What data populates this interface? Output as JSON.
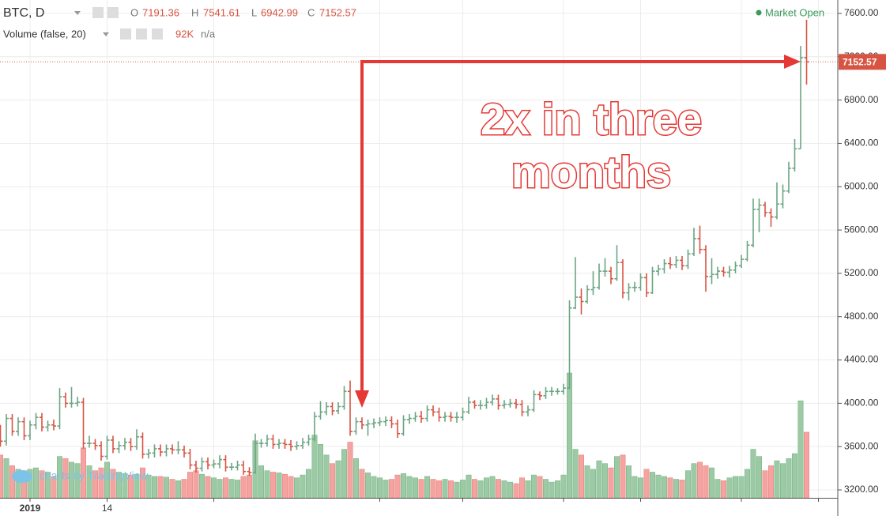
{
  "header": {
    "symbol": "BTC, D",
    "status": "Market Open"
  },
  "chart_data": {
    "type": "ohlc",
    "legend": {
      "open_label": "O",
      "high_label": "H",
      "low_label": "L",
      "close_label": "C"
    },
    "categories": [
      null,
      null,
      null,
      null,
      null,
      "2019",
      null,
      null,
      null,
      null,
      null,
      null,
      null,
      null,
      null,
      null,
      null,
      null,
      "14",
      null,
      null,
      null,
      null,
      null,
      null,
      null,
      null,
      null,
      null,
      null,
      null,
      null,
      null,
      null,
      null,
      null,
      null,
      null,
      null,
      null,
      null,
      null,
      null,
      null,
      null,
      null,
      null,
      null,
      null,
      null,
      null,
      null,
      null,
      null,
      null,
      null,
      null,
      null,
      null,
      null,
      null,
      null,
      null,
      null,
      null,
      null,
      null,
      null,
      null,
      null,
      null,
      null,
      null,
      null,
      null,
      null,
      null,
      null,
      null,
      null,
      null,
      null,
      null,
      null,
      null,
      null,
      null,
      null,
      null,
      null,
      null,
      null,
      null,
      null,
      null,
      null,
      null,
      null,
      null,
      null,
      null,
      null,
      null,
      null,
      null,
      null,
      null,
      null,
      null,
      null,
      null,
      null,
      null,
      null,
      null,
      null,
      null,
      null,
      null,
      null,
      null,
      null,
      null,
      null,
      null,
      null,
      null,
      null,
      null,
      null,
      null,
      null,
      null,
      null,
      null,
      null,
      null
    ],
    "open": [
      3750,
      3650,
      3860,
      3740,
      3830,
      3700,
      3800,
      3870,
      3780,
      3800,
      3790,
      4060,
      4000,
      4000,
      4010,
      3630,
      3630,
      3610,
      3510,
      3660,
      3580,
      3610,
      3640,
      3600,
      3690,
      3530,
      3540,
      3580,
      3550,
      3580,
      3570,
      3570,
      3540,
      3430,
      3400,
      3460,
      3430,
      3440,
      3480,
      3410,
      3410,
      3430,
      3370,
      3360,
      3630,
      3630,
      3670,
      3620,
      3630,
      3620,
      3600,
      3610,
      3640,
      3670,
      3880,
      3920,
      3970,
      3930,
      3970,
      4110,
      3740,
      3830,
      3800,
      3810,
      3820,
      3830,
      3840,
      3810,
      3720,
      3850,
      3860,
      3880,
      3860,
      3940,
      3920,
      3870,
      3880,
      3870,
      3870,
      3920,
      4010,
      3980,
      3980,
      4010,
      4040,
      3980,
      3990,
      4000,
      3990,
      3920,
      3940,
      4080,
      4070,
      4110,
      4110,
      4110,
      4140,
      4880,
      4980,
      4940,
      5050,
      5070,
      5220,
      5220,
      5150,
      5300,
      5020,
      5070,
      5070,
      5160,
      5020,
      5220,
      5240,
      5290,
      5280,
      5320,
      5270,
      5380,
      5520,
      5420,
      5170,
      5190,
      5220,
      5210,
      5230,
      5270,
      5330,
      5460,
      5790,
      5830,
      5760,
      5720,
      5840,
      5960,
      6170,
      6350,
      7191.36
    ],
    "high": [
      3800,
      3900,
      3900,
      3870,
      3870,
      3840,
      3910,
      3910,
      3840,
      3850,
      4140,
      4100,
      4150,
      4060,
      4050,
      3700,
      3670,
      3650,
      3700,
      3700,
      3650,
      3680,
      3680,
      3760,
      3730,
      3580,
      3620,
      3620,
      3620,
      3620,
      3650,
      3610,
      3580,
      3470,
      3500,
      3500,
      3480,
      3520,
      3520,
      3450,
      3470,
      3470,
      3410,
      3720,
      3670,
      3710,
      3710,
      3670,
      3670,
      3660,
      3650,
      3680,
      3710,
      3920,
      4020,
      4010,
      4010,
      4010,
      4160,
      4210,
      3870,
      3870,
      3850,
      3860,
      3870,
      3880,
      3880,
      3850,
      3890,
      3900,
      3920,
      3930,
      3980,
      3980,
      3960,
      3920,
      3920,
      3920,
      3960,
      4060,
      4030,
      4030,
      4050,
      4080,
      4080,
      4030,
      4040,
      4040,
      4030,
      3980,
      4120,
      4110,
      4150,
      4150,
      4140,
      4180,
      4950,
      5350,
      5060,
      5090,
      5220,
      5290,
      5340,
      5260,
      5460,
      5330,
      5110,
      5120,
      5200,
      5200,
      5260,
      5280,
      5330,
      5350,
      5360,
      5360,
      5420,
      5620,
      5640,
      5460,
      5340,
      5260,
      5260,
      5270,
      5310,
      5370,
      5500,
      5890,
      5890,
      5860,
      5800,
      6040,
      6020,
      6230,
      6440,
      7300,
      7541.61
    ],
    "low": [
      3600,
      3610,
      3700,
      3700,
      3660,
      3660,
      3760,
      3740,
      3740,
      3750,
      3760,
      3960,
      3960,
      3970,
      3580,
      3590,
      3570,
      3470,
      3480,
      3540,
      3540,
      3570,
      3560,
      3570,
      3490,
      3490,
      3500,
      3510,
      3510,
      3530,
      3530,
      3500,
      3390,
      3360,
      3370,
      3390,
      3400,
      3400,
      3370,
      3380,
      3380,
      3340,
      3330,
      3350,
      3590,
      3600,
      3580,
      3580,
      3580,
      3560,
      3570,
      3580,
      3610,
      3650,
      3850,
      3890,
      3890,
      3900,
      3940,
      3700,
      3710,
      3760,
      3700,
      3770,
      3790,
      3790,
      3770,
      3680,
      3700,
      3810,
      3830,
      3820,
      3830,
      3880,
      3830,
      3830,
      3830,
      3820,
      3840,
      3900,
      3950,
      3940,
      3950,
      3980,
      3940,
      3950,
      3960,
      3950,
      3880,
      3880,
      3920,
      4030,
      4040,
      4070,
      4080,
      4080,
      4130,
      4870,
      4820,
      4920,
      5000,
      5050,
      5170,
      5100,
      5130,
      4970,
      4950,
      5030,
      5040,
      4980,
      5010,
      5180,
      5200,
      5240,
      5250,
      5230,
      5240,
      5360,
      5380,
      5030,
      5100,
      5150,
      5170,
      5160,
      5200,
      5250,
      5310,
      5440,
      5580,
      5720,
      5630,
      5700,
      5800,
      5940,
      6140,
      6350,
      6942.99
    ],
    "close": [
      3650,
      3860,
      3740,
      3830,
      3700,
      3800,
      3870,
      3780,
      3800,
      3790,
      4060,
      4000,
      4000,
      4010,
      3630,
      3630,
      3610,
      3510,
      3660,
      3580,
      3610,
      3640,
      3600,
      3690,
      3530,
      3540,
      3580,
      3550,
      3580,
      3570,
      3570,
      3540,
      3430,
      3400,
      3460,
      3430,
      3440,
      3480,
      3410,
      3410,
      3430,
      3370,
      3360,
      3630,
      3630,
      3670,
      3620,
      3630,
      3620,
      3600,
      3610,
      3640,
      3670,
      3880,
      3920,
      3970,
      3930,
      3970,
      4110,
      3740,
      3830,
      3800,
      3810,
      3820,
      3830,
      3840,
      3810,
      3720,
      3850,
      3860,
      3880,
      3860,
      3940,
      3920,
      3870,
      3880,
      3870,
      3870,
      3920,
      4010,
      3980,
      3980,
      4010,
      4040,
      3980,
      3990,
      4000,
      3990,
      3920,
      3940,
      4080,
      4070,
      4110,
      4110,
      4110,
      4140,
      4880,
      4980,
      4940,
      5050,
      5070,
      5220,
      5220,
      5150,
      5300,
      5020,
      5070,
      5070,
      5160,
      5020,
      5220,
      5240,
      5290,
      5280,
      5320,
      5270,
      5380,
      5520,
      5420,
      5170,
      5190,
      5220,
      5210,
      5230,
      5270,
      5330,
      5460,
      5790,
      5830,
      5760,
      5720,
      5840,
      5960,
      6170,
      6350,
      7191.36,
      7152.57
    ],
    "up_color": "#6ba583",
    "down_color": "#d75442",
    "ylim": [
      3127,
      7724
    ],
    "yticks": [
      {
        "value": 3200,
        "label": "3200.00"
      },
      {
        "value": 3600,
        "label": "3600.00"
      },
      {
        "value": 4000,
        "label": "4000.00"
      },
      {
        "value": 4400,
        "label": "4400.00"
      },
      {
        "value": 4800,
        "label": "4800.00"
      },
      {
        "value": 5200,
        "label": "5200.00"
      },
      {
        "value": 5600,
        "label": "5600.00"
      },
      {
        "value": 6000,
        "label": "6000.00"
      },
      {
        "value": 6400,
        "label": "6400.00"
      },
      {
        "value": 6800,
        "label": "6800.00"
      },
      {
        "value": 7200,
        "label": "7200.00"
      },
      {
        "value": 7600,
        "label": "7600.00"
      }
    ],
    "grid": true,
    "volume": {
      "title": "Volume (false, 20)",
      "last_value_label": "92K",
      "extra_label": "n/a",
      "up_color": "#9ccaa4",
      "down_color": "#f4a3a0",
      "values": [
        60000,
        55000,
        45000,
        40000,
        38000,
        40000,
        42000,
        38000,
        36000,
        30000,
        58000,
        55000,
        50000,
        48000,
        70000,
        45000,
        38000,
        42000,
        50000,
        40000,
        36000,
        34000,
        32000,
        33000,
        42000,
        32000,
        30000,
        30000,
        29000,
        26000,
        24000,
        26000,
        36000,
        38000,
        33000,
        30000,
        28000,
        26000,
        28000,
        26000,
        25000,
        30000,
        32000,
        80000,
        45000,
        38000,
        36000,
        35000,
        33000,
        30000,
        28000,
        32000,
        40000,
        88000,
        75000,
        60000,
        48000,
        52000,
        68000,
        78000,
        55000,
        40000,
        35000,
        30000,
        28000,
        25000,
        26000,
        32000,
        34000,
        30000,
        28000,
        26000,
        30000,
        26000,
        24000,
        26000,
        24000,
        22000,
        25000,
        32000,
        26000,
        24000,
        28000,
        30000,
        26000,
        24000,
        22000,
        20000,
        28000,
        24000,
        32000,
        30000,
        26000,
        22000,
        24000,
        32000,
        175000,
        68000,
        60000,
        45000,
        40000,
        52000,
        48000,
        42000,
        58000,
        60000,
        45000,
        30000,
        28000,
        40000,
        36000,
        32000,
        30000,
        28000,
        26000,
        25000,
        38000,
        48000,
        50000,
        45000,
        42000,
        26000,
        24000,
        28000,
        30000,
        30000,
        40000,
        68000,
        58000,
        38000,
        45000,
        52000,
        48000,
        55000,
        62000,
        136000,
        92000
      ]
    },
    "annotation": [
      "2x in three",
      "months"
    ]
  },
  "footer": {
    "branding": "charts by TradingView"
  }
}
